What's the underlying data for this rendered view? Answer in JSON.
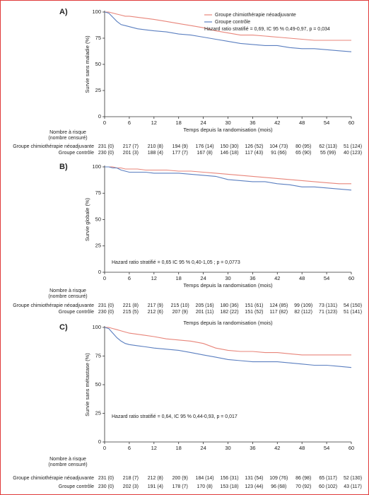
{
  "chart_data": [
    {
      "type": "line",
      "panel": "A)",
      "ylabel": "Survie sans maladie (%)",
      "xlabel": "Temps depuis la randomisation (mois)",
      "x": [
        0,
        1,
        2,
        3,
        4,
        5,
        6,
        8,
        10,
        12,
        15,
        18,
        21,
        24,
        27,
        30,
        33,
        36,
        39,
        42,
        45,
        48,
        51,
        54,
        57,
        60
      ],
      "series": [
        {
          "name": "Groupe chimiothérapie néoadjuvante",
          "color": "#e8857a",
          "values": [
            100,
            100,
            99,
            98,
            97,
            96,
            96,
            95,
            94,
            93,
            91,
            89,
            87,
            85,
            82,
            80,
            78,
            78,
            77,
            76,
            75,
            74,
            73,
            73,
            73,
            73
          ]
        },
        {
          "name": "Groupe contrôle",
          "color": "#5b7fc0",
          "values": [
            100,
            99,
            95,
            91,
            88,
            87,
            86,
            84,
            83,
            82,
            81,
            79,
            78,
            76,
            74,
            72,
            70,
            69,
            68,
            68,
            66,
            65,
            65,
            64,
            63,
            62
          ]
        }
      ],
      "annotation": "Hazard ratio stratifié = 0,69, IC 95 % 0,49-0,97, p = 0,034",
      "legend": "upper right",
      "xlim": [
        0,
        60
      ],
      "ylim": [
        0,
        100
      ],
      "xticks": [
        0,
        6,
        12,
        18,
        24,
        30,
        36,
        42,
        48,
        54,
        60
      ],
      "yticks": [
        0,
        25,
        50,
        75,
        100
      ],
      "risk_table": {
        "title": [
          "Nombre à risque",
          "(nombre censuré)"
        ],
        "rows": [
          {
            "label": "Groupe chimiothérapie néoadjuvante",
            "values": [
              "231 (0)",
              "217 (7)",
              "210 (8)",
              "194 (9)",
              "176 (14)",
              "150 (30)",
              "126 (52)",
              "104 (73)",
              "80 (95)",
              "62 (113)",
              "51 (124)"
            ]
          },
          {
            "label": "Groupe contrôle",
            "values": [
              "230 (0)",
              "201 (3)",
              "188 (4)",
              "177 (7)",
              "167 (8)",
              "146 (18)",
              "117 (43)",
              "91 (66)",
              "65 (90)",
              "55 (99)",
              "40 (123)"
            ]
          }
        ]
      }
    },
    {
      "type": "line",
      "panel": "B)",
      "ylabel": "Survie globale (%)",
      "xlabel": "Temps depuis la randomisation (mois)",
      "x": [
        0,
        1,
        2,
        3,
        4,
        5,
        6,
        8,
        10,
        12,
        15,
        18,
        21,
        24,
        27,
        30,
        33,
        36,
        39,
        42,
        45,
        48,
        51,
        54,
        57,
        60
      ],
      "series": [
        {
          "color": "#e8857a",
          "values": [
            100,
            100,
            100,
            99,
            99,
            98,
            98,
            98,
            97,
            97,
            97,
            96,
            96,
            95,
            94,
            93,
            92,
            91,
            90,
            89,
            88,
            87,
            86,
            85,
            84,
            84
          ]
        },
        {
          "color": "#5b7fc0",
          "values": [
            100,
            100,
            99,
            99,
            97,
            96,
            95,
            95,
            95,
            94,
            94,
            94,
            93,
            92,
            91,
            88,
            87,
            86,
            86,
            84,
            83,
            81,
            81,
            80,
            79,
            78
          ]
        }
      ],
      "annotation": "Hazard ratio stratifié = 0,65 IC 95 % 0,40-1,05 ; p = 0,0773",
      "xlim": [
        0,
        60
      ],
      "ylim": [
        0,
        100
      ],
      "xticks": [
        0,
        6,
        12,
        18,
        24,
        30,
        36,
        42,
        48,
        54,
        60
      ],
      "yticks": [
        0,
        25,
        50,
        75,
        100
      ],
      "risk_table": {
        "title": [
          "Nombre à risque",
          "(nombre censuré)"
        ],
        "rows": [
          {
            "label": "Groupe chimiothérapie néoadjuvante",
            "values": [
              "231 (0)",
              "221 (8)",
              "217 (9)",
              "215 (10)",
              "205 (16)",
              "180 (36)",
              "151 (61)",
              "124 (85)",
              "99 (109)",
              "73 (131)",
              "54 (150)"
            ]
          },
          {
            "label": "Groupe contrôle",
            "values": [
              "230 (0)",
              "215 (5)",
              "212 (6)",
              "207 (9)",
              "201 (11)",
              "182 (22)",
              "151 (52)",
              "117 (82)",
              "82 (112)",
              "71 (123)",
              "51 (141)"
            ]
          }
        ]
      }
    },
    {
      "type": "line",
      "panel": "C)",
      "ylabel": "Survie sans métastase (%)",
      "xlabel": "Temps depuis la randomisation (mois)",
      "x": [
        0,
        1,
        2,
        3,
        4,
        5,
        6,
        8,
        10,
        12,
        15,
        18,
        21,
        24,
        27,
        30,
        33,
        36,
        39,
        42,
        45,
        48,
        51,
        54,
        57,
        60
      ],
      "series": [
        {
          "color": "#e8857a",
          "values": [
            100,
            100,
            99,
            98,
            97,
            96,
            95,
            94,
            93,
            92,
            90,
            89,
            88,
            86,
            82,
            80,
            79,
            79,
            78,
            78,
            77,
            76,
            76,
            76,
            76,
            76
          ]
        },
        {
          "color": "#5b7fc0",
          "values": [
            100,
            99,
            95,
            91,
            88,
            86,
            85,
            84,
            83,
            82,
            81,
            80,
            78,
            76,
            74,
            72,
            71,
            70,
            70,
            70,
            69,
            68,
            67,
            67,
            66,
            65
          ]
        }
      ],
      "annotation": "Hazard ratio stratifié = 0,64, IC 95 % 0,44-0,93, p = 0,017",
      "xlim": [
        0,
        60
      ],
      "ylim": [
        0,
        100
      ],
      "xticks": [
        0,
        6,
        12,
        18,
        24,
        30,
        36,
        42,
        48,
        54,
        60
      ],
      "yticks": [
        0,
        25,
        50,
        75,
        100
      ],
      "risk_table": {
        "title": [
          "Nombre à risque",
          "(nombre censuré)"
        ],
        "rows": [
          {
            "label": "Groupe chimiothérapie néoadjuvante",
            "values": [
              "231 (0)",
              "218 (7)",
              "212 (8)",
              "200 (9)",
              "184 (14)",
              "156 (31)",
              "131 (54)",
              "109 (76)",
              "86 (98)",
              "65 (117)",
              "52 (130)"
            ]
          },
          {
            "label": "Groupe contrôle",
            "values": [
              "230 (0)",
              "202 (3)",
              "191 (4)",
              "178 (7)",
              "170 (8)",
              "153 (18)",
              "123 (44)",
              "96 (68)",
              "70 (92)",
              "60 (102)",
              "43 (117)"
            ]
          }
        ]
      }
    }
  ]
}
